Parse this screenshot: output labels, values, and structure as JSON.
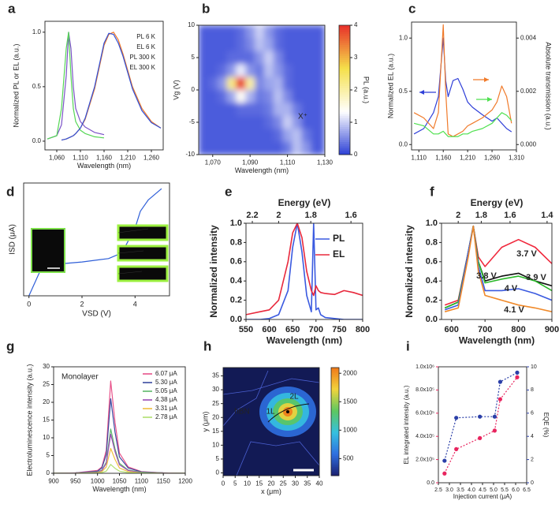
{
  "chart_data": [
    {
      "type": "line",
      "panel": "a",
      "xlabel": "Wavelength (nm)",
      "ylabel": "Normalized PL or EL (a.u.)",
      "x": [
        1040,
        1060,
        1070,
        1080,
        1085,
        1090,
        1095,
        1100,
        1110,
        1120,
        1140,
        1160,
        1170,
        1180,
        1190,
        1200,
        1220,
        1240,
        1260,
        1280
      ],
      "xlim": [
        1035,
        1285
      ],
      "ylim": [
        -0.08,
        1.1
      ],
      "xticks": [
        {
          "value": 1060,
          "label": "1,060"
        },
        {
          "value": 1110,
          "label": "1,110"
        },
        {
          "value": 1160,
          "label": "1,160"
        },
        {
          "value": 1210,
          "label": "1,210"
        },
        {
          "value": 1260,
          "label": "1,260"
        }
      ],
      "yticks": [
        {
          "value": 0,
          "label": "0.0"
        },
        0.5,
        {
          "value": 1,
          "label": "1.0"
        }
      ],
      "legend": "upper right",
      "series": [
        {
          "name": "PL 6 K",
          "color": "#7b52c7",
          "values": [
            0.02,
            0.05,
            0.15,
            0.6,
            1.0,
            0.85,
            0.5,
            0.3,
            0.18,
            0.13,
            0.08,
            0.06,
            null,
            null,
            null,
            null,
            null,
            null,
            null,
            null
          ]
        },
        {
          "name": "EL 6 K",
          "color": "#55d655",
          "values": [
            0.02,
            0.05,
            0.3,
            0.85,
            1.0,
            0.6,
            0.3,
            0.18,
            0.1,
            0.07,
            0.04,
            0.03,
            null,
            null,
            null,
            null,
            null,
            null,
            null,
            null
          ]
        },
        {
          "name": "PL 300 K",
          "color": "#f07a2a",
          "values": [
            null,
            null,
            0.01,
            0.02,
            0.03,
            0.04,
            0.05,
            0.07,
            0.12,
            0.2,
            0.48,
            0.88,
            0.98,
            1.0,
            0.93,
            0.8,
            0.5,
            0.3,
            0.18,
            0.12
          ]
        },
        {
          "name": "EL 300 K",
          "color": "#2f4fd8",
          "values": [
            null,
            null,
            0.01,
            0.02,
            0.03,
            0.04,
            0.05,
            0.07,
            0.12,
            0.21,
            0.5,
            0.9,
            0.99,
            0.98,
            0.9,
            0.78,
            0.48,
            0.28,
            0.17,
            0.12
          ]
        }
      ]
    },
    {
      "type": "heatmap",
      "panel": "b",
      "xlabel": "Wavelength (nm)",
      "ylabel": "Vg (V)",
      "annotations": [
        "X⁺"
      ],
      "x": [
        1065,
        1070,
        1075,
        1080,
        1085,
        1090,
        1095,
        1100,
        1105,
        1110,
        1115,
        1120,
        1125
      ],
      "y": [
        9,
        7,
        5,
        3,
        1,
        -1,
        -3,
        -5,
        -7,
        -9
      ],
      "z": [
        [
          0.2,
          0.2,
          0.2,
          0.2,
          0.3,
          0.6,
          1.0,
          0.6,
          0.3,
          0.2,
          0.2,
          0.2,
          0.2
        ],
        [
          0.2,
          0.2,
          0.2,
          0.2,
          0.3,
          0.5,
          0.9,
          0.7,
          0.3,
          0.2,
          0.2,
          0.2,
          0.2
        ],
        [
          0.2,
          0.2,
          0.2,
          0.3,
          0.3,
          0.3,
          0.6,
          1.0,
          0.5,
          0.2,
          0.2,
          0.2,
          0.2
        ],
        [
          0.2,
          0.2,
          0.3,
          0.6,
          1.2,
          0.6,
          0.4,
          0.9,
          0.6,
          0.3,
          0.2,
          0.2,
          0.2
        ],
        [
          0.2,
          0.3,
          0.6,
          2.2,
          4.0,
          2.0,
          0.5,
          0.7,
          0.8,
          0.3,
          0.2,
          0.2,
          0.2
        ],
        [
          0.2,
          0.2,
          0.3,
          0.7,
          1.4,
          0.8,
          0.4,
          0.5,
          0.9,
          0.5,
          0.2,
          0.2,
          0.2
        ],
        [
          0.2,
          0.2,
          0.2,
          0.2,
          0.3,
          0.3,
          0.3,
          0.4,
          0.8,
          0.8,
          0.4,
          0.2,
          0.2
        ],
        [
          0.2,
          0.2,
          0.2,
          0.2,
          0.2,
          0.2,
          0.2,
          0.3,
          0.5,
          1.0,
          0.6,
          0.2,
          0.2
        ],
        [
          0.2,
          0.2,
          0.2,
          0.2,
          0.2,
          0.2,
          0.2,
          0.2,
          0.3,
          0.7,
          0.9,
          0.4,
          0.2
        ],
        [
          0.2,
          0.2,
          0.2,
          0.2,
          0.2,
          0.2,
          0.2,
          0.2,
          0.2,
          0.4,
          0.9,
          0.6,
          0.2
        ]
      ],
      "xlim": [
        1062.5,
        1130
      ],
      "ylim": [
        -10,
        10
      ],
      "xticks": [
        {
          "value": 1070,
          "label": "1,070"
        },
        {
          "value": 1090,
          "label": "1,090"
        },
        {
          "value": 1110,
          "label": "1,110"
        },
        {
          "value": 1130,
          "label": "1,130"
        }
      ],
      "yticks": [
        -10,
        -5,
        0,
        5,
        10
      ],
      "clim": [
        0,
        4
      ],
      "cticks": [
        0,
        1,
        2,
        3,
        4
      ],
      "clabel": "PL (a.u.)",
      "colormap": [
        "#2b3fd6",
        "#ffffff",
        "#f5e04a",
        "#e8302a"
      ]
    },
    {
      "type": "line",
      "panel": "c",
      "ylabel": "Normalized EL (a.u.)",
      "y2label": "Absolute transmission (a.u.)",
      "x": [
        1100,
        1120,
        1140,
        1150,
        1160,
        1165,
        1170,
        1180,
        1190,
        1200,
        1210,
        1220,
        1240,
        1260,
        1270,
        1280,
        1290,
        1300
      ],
      "xlim": [
        1095,
        1310
      ],
      "ylim": [
        -0.05,
        1.15
      ],
      "y2lim": [
        -0.0002,
        0.0046
      ],
      "xticks": [
        {
          "value": 1110,
          "label": "1,110"
        },
        {
          "value": 1160,
          "label": "1,160"
        },
        {
          "value": 1210,
          "label": "1,210"
        },
        {
          "value": 1260,
          "label": "1,260"
        },
        {
          "value": 1310,
          "label": "1,310"
        }
      ],
      "yticks": [
        {
          "value": 0,
          "label": "0.0"
        },
        0.5,
        {
          "value": 1,
          "label": "1.0"
        }
      ],
      "y2ticks": [
        {
          "value": 0,
          "label": "0.000"
        },
        0.002,
        0.004
      ],
      "series": [
        {
          "color": "#2f3fd8",
          "values": [
            0.1,
            0.15,
            0.3,
            0.45,
            1.0,
            0.6,
            0.45,
            0.6,
            0.62,
            0.52,
            0.4,
            0.35,
            0.28,
            0.22,
            0.25,
            0.2,
            0.15,
            0.12
          ]
        },
        {
          "color": "#f07a2a",
          "axis": "y2",
          "values": [
            0.0012,
            0.001,
            0.0006,
            0.0012,
            0.0045,
            0.002,
            0.0004,
            0.0003,
            0.0004,
            0.0005,
            0.0007,
            0.0008,
            0.001,
            0.0013,
            0.0016,
            0.0022,
            0.0018,
            0.0008
          ]
        },
        {
          "color": "#4fe04f",
          "axis": "y2",
          "values": [
            0.0008,
            0.0007,
            0.0004,
            0.0004,
            0.0005,
            0.0004,
            0.0003,
            0.0003,
            0.0003,
            0.0004,
            0.0004,
            0.0005,
            0.0006,
            0.0008,
            0.001,
            0.0012,
            0.0011,
            0.0009
          ]
        }
      ]
    },
    {
      "type": "line",
      "panel": "d",
      "xlabel": "VSD (V)",
      "ylabel": "ISD (μA)",
      "x": [
        0,
        0.5,
        1,
        2,
        3,
        3.5,
        4,
        4.2,
        4.5,
        5
      ],
      "xlim": [
        -0.2,
        5.3
      ],
      "ylim": [
        0,
        10
      ],
      "xticks": [
        0,
        2,
        4
      ],
      "series": [
        {
          "color": "#2f5fd8",
          "values": [
            0,
            2.6,
            2.8,
            3.0,
            3.3,
            3.8,
            6,
            7.5,
            8.5,
            9.5
          ]
        }
      ]
    },
    {
      "type": "line",
      "panel": "e",
      "xlabel": "Wavelength (nm)",
      "ylabel": "Normalized intensity",
      "x2label": "Energy (eV)",
      "x": [
        550,
        580,
        600,
        620,
        640,
        650,
        660,
        670,
        680,
        690,
        695,
        700,
        705,
        710,
        720,
        740,
        760,
        780,
        800
      ],
      "xlim": [
        550,
        800
      ],
      "ylim": [
        0,
        1
      ],
      "xticks": [
        550,
        600,
        650,
        700,
        750,
        800
      ],
      "yticks": [
        {
          "value": 0,
          "label": "0.0"
        },
        0.2,
        0.4,
        0.6,
        0.8,
        {
          "value": 1,
          "label": "1.0"
        }
      ],
      "x2ticks": [
        2.2,
        2,
        1.8,
        1.6
      ],
      "legend": "upper right",
      "series": [
        {
          "name": "PL",
          "color": "#3a5ae0",
          "values": [
            0,
            0,
            0.01,
            0.05,
            0.3,
            0.75,
            1.0,
            0.7,
            0.25,
            0.08,
            1.0,
            0.1,
            0.12,
            0.05,
            0.02,
            0.01,
            0,
            0,
            0
          ]
        },
        {
          "name": "EL",
          "color": "#e8283c",
          "values": [
            0.05,
            0.08,
            0.1,
            0.2,
            0.6,
            0.9,
            1.0,
            0.85,
            0.5,
            0.3,
            0.25,
            0.35,
            0.3,
            0.28,
            0.27,
            0.26,
            0.3,
            0.28,
            0.25
          ]
        }
      ]
    },
    {
      "type": "line",
      "panel": "f",
      "xlabel": "Wavelength (nm)",
      "ylabel": "Normalized intensity",
      "x2label": "Energy (eV)",
      "x": [
        580,
        620,
        650,
        665,
        680,
        700,
        750,
        800,
        850,
        900
      ],
      "xlim": [
        570,
        900
      ],
      "ylim": [
        0,
        1
      ],
      "xticks": [
        600,
        700,
        800,
        900
      ],
      "yticks": [
        {
          "value": 0,
          "label": "0.0"
        },
        0.2,
        0.4,
        0.6,
        0.8,
        {
          "value": 1,
          "label": "1.0"
        }
      ],
      "x2ticks": [
        2,
        1.8,
        1.6,
        1.4
      ],
      "legend": "inline",
      "series": [
        {
          "name": "3.7 V",
          "color": "#f0283c",
          "values": [
            0.15,
            0.2,
            0.7,
            0.97,
            0.65,
            0.55,
            0.75,
            0.83,
            0.75,
            0.58
          ]
        },
        {
          "name": "3.8 V",
          "color": "#111111",
          "values": [
            0.12,
            0.18,
            0.7,
            0.97,
            0.6,
            0.4,
            0.45,
            0.48,
            0.4,
            0.35
          ]
        },
        {
          "name": "3.9 V",
          "color": "#2ab82a",
          "values": [
            0.12,
            0.18,
            0.7,
            0.97,
            0.6,
            0.38,
            0.42,
            0.45,
            0.4,
            0.3
          ]
        },
        {
          "name": "4 V",
          "color": "#3a5ae0",
          "values": [
            0.1,
            0.15,
            0.7,
            0.97,
            0.55,
            0.3,
            0.3,
            0.32,
            0.27,
            0.2
          ]
        },
        {
          "name": "4.1 V",
          "color": "#f08a2a",
          "values": [
            0.08,
            0.12,
            0.65,
            0.97,
            0.5,
            0.25,
            0.2,
            0.15,
            0.12,
            0.08
          ]
        }
      ]
    },
    {
      "type": "line",
      "panel": "g",
      "xlabel": "Wavelength (nm)",
      "ylabel": "Electroluminescence intensity (a.u.)",
      "annotations": [
        "Monolayer"
      ],
      "x": [
        900,
        950,
        1000,
        1010,
        1020,
        1030,
        1040,
        1050,
        1070,
        1100,
        1150,
        1200
      ],
      "xlim": [
        900,
        1200
      ],
      "ylim": [
        0,
        30
      ],
      "xticks": [
        900,
        950,
        1000,
        1050,
        1100,
        1150,
        1200
      ],
      "yticks": [
        0,
        5,
        10,
        15,
        20,
        25,
        30
      ],
      "legend": "upper right",
      "series": [
        {
          "name": "6.07 μA",
          "color": "#e8528a",
          "values": [
            0,
            0.1,
            0.8,
            1.8,
            6.5,
            26,
            14.3,
            5.7,
            1.8,
            0.5,
            0.1,
            0
          ]
        },
        {
          "name": "5.30 μA",
          "color": "#3a4aa0",
          "values": [
            0,
            0.1,
            0.6,
            1.5,
            5.3,
            21,
            11.6,
            4.6,
            1.5,
            0.4,
            0.1,
            0
          ]
        },
        {
          "name": "5.05 μA",
          "color": "#5db86a",
          "values": [
            0,
            0.1,
            0.4,
            0.9,
            3.1,
            12.5,
            6.9,
            2.8,
            0.9,
            0.3,
            0.1,
            0
          ]
        },
        {
          "name": "4.38 μA",
          "color": "#9a4bb5",
          "values": [
            0,
            0.1,
            0.3,
            0.8,
            2.8,
            11,
            6.1,
            2.4,
            0.8,
            0.2,
            0.1,
            0
          ]
        },
        {
          "name": "3.31 μA",
          "color": "#f0c040",
          "values": [
            0,
            0,
            0.2,
            0.5,
            1.8,
            7,
            3.9,
            1.5,
            0.5,
            0.1,
            0,
            0
          ]
        },
        {
          "name": "2.78 μA",
          "color": "#b0e070",
          "values": [
            0,
            0,
            0.1,
            0.2,
            0.6,
            2.5,
            1.4,
            0.6,
            0.2,
            0.1,
            0,
            0
          ]
        }
      ]
    },
    {
      "type": "image",
      "panel": "h",
      "xlabel": "x (μm)",
      "ylabel": "y (μm)",
      "annotations": [
        "hBN",
        "1L",
        "2L"
      ],
      "xlim": [
        0,
        40
      ],
      "ylim": [
        -1,
        38
      ],
      "xticks": [
        0,
        5,
        10,
        15,
        20,
        25,
        30,
        35,
        40
      ],
      "yticks": [
        0,
        5,
        10,
        15,
        20,
        25,
        30,
        35
      ],
      "clim": [
        200,
        2100
      ],
      "cticks": [
        500,
        1000,
        1500,
        2000
      ],
      "colormap": [
        "#1b1e6e",
        "#2f6fe0",
        "#35c0e0",
        "#5cc760",
        "#f1d33c",
        "#f07a1a"
      ]
    },
    {
      "type": "line",
      "panel": "i",
      "xlabel": "Injection current (μA)",
      "ylabel": "EL integrated intensity (a.u.)",
      "y2label": "EQE (%)",
      "x": [
        2.78,
        3.31,
        4.38,
        5.05,
        5.3,
        6.07
      ],
      "xlim": [
        2.5,
        6.5
      ],
      "ylim": [
        0,
        1000000
      ],
      "y2lim": [
        0,
        10
      ],
      "xticks": [
        2.5,
        {
          "value": 3,
          "label": "3.0"
        },
        3.5,
        {
          "value": 4,
          "label": "4.0"
        },
        4.5,
        {
          "value": 5,
          "label": "5.0"
        },
        5.5,
        {
          "value": 6,
          "label": "6.0"
        },
        6.5
      ],
      "yticks": [
        {
          "value": 0,
          "label": "0.0"
        },
        {
          "value": 200000,
          "label": "2.0x10⁵"
        },
        {
          "value": 400000,
          "label": "4.0x10⁵"
        },
        {
          "value": 600000,
          "label": "6.0x10⁵"
        },
        {
          "value": 800000,
          "label": "8.0x10⁵"
        },
        {
          "value": 1000000,
          "label": "1.0x10⁶"
        }
      ],
      "y2ticks": [
        0,
        2,
        4,
        6,
        8,
        10
      ],
      "markers": true,
      "line_style": "dotted",
      "series": [
        {
          "color": "#e8245e",
          "values": [
            80000,
            290000,
            385000,
            450000,
            720000,
            910000
          ]
        },
        {
          "color": "#2b3fa8",
          "axis": "y2",
          "values": [
            1.9,
            5.6,
            5.7,
            5.7,
            8.7,
            9.5
          ]
        }
      ]
    }
  ]
}
